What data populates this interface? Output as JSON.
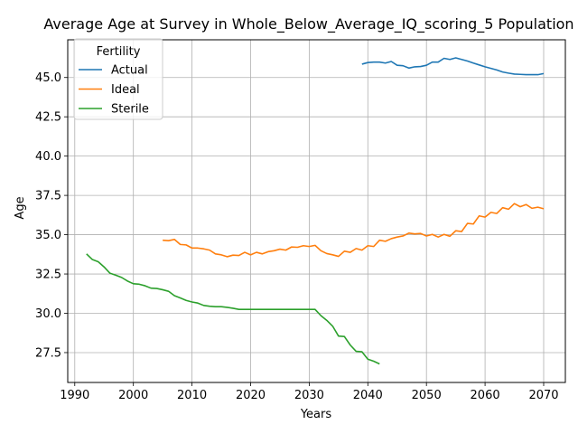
{
  "chart_data": {
    "type": "line",
    "title": "Average Age at Survey in Whole_Below_Average_IQ_scoring_5 Population",
    "xlabel": "Years",
    "ylabel": "Age",
    "xlim": [
      1988.8,
      2073.7
    ],
    "ylim": [
      25.6,
      47.4
    ],
    "xticks": [
      1990,
      2000,
      2010,
      2020,
      2030,
      2040,
      2050,
      2060,
      2070
    ],
    "xtick_labels": [
      "1990",
      "2000",
      "2010",
      "2020",
      "2030",
      "2040",
      "2050",
      "2060",
      "2070"
    ],
    "yticks": [
      27.5,
      30.0,
      32.5,
      35.0,
      37.5,
      40.0,
      42.5,
      45.0
    ],
    "ytick_labels": [
      "27.5",
      "30.0",
      "32.5",
      "35.0",
      "37.5",
      "40.0",
      "42.5",
      "45.0"
    ],
    "grid": true,
    "legend": {
      "title": "Fertility",
      "position": "upper left"
    },
    "series": [
      {
        "name": "Actual",
        "color": "#1f77b4",
        "x": [
          2039,
          2040,
          2041,
          2042,
          2043,
          2044,
          2045,
          2046,
          2047,
          2048,
          2049,
          2050,
          2051,
          2052,
          2053,
          2054,
          2055,
          2056,
          2057,
          2058,
          2059,
          2060,
          2061,
          2062,
          2063,
          2064,
          2065,
          2066,
          2067,
          2068,
          2069,
          2070
        ],
        "y": [
          45.85,
          45.95,
          45.98,
          45.98,
          45.92,
          46.02,
          45.78,
          45.75,
          45.6,
          45.68,
          45.7,
          45.78,
          45.98,
          45.98,
          46.22,
          46.15,
          46.25,
          46.15,
          46.05,
          45.92,
          45.8,
          45.68,
          45.58,
          45.48,
          45.35,
          45.28,
          45.22,
          45.2,
          45.18,
          45.18,
          45.18,
          45.25
        ]
      },
      {
        "name": "Ideal",
        "color": "#ff7f0e",
        "x": [
          2005,
          2006,
          2007,
          2008,
          2009,
          2010,
          2011,
          2012,
          2013,
          2014,
          2015,
          2016,
          2017,
          2018,
          2019,
          2020,
          2021,
          2022,
          2023,
          2024,
          2025,
          2026,
          2027,
          2028,
          2029,
          2030,
          2031,
          2032,
          2033,
          2034,
          2035,
          2036,
          2037,
          2038,
          2039,
          2040,
          2041,
          2042,
          2043,
          2044,
          2045,
          2046,
          2047,
          2048,
          2049,
          2050,
          2051,
          2052,
          2053,
          2054,
          2055,
          2056,
          2057,
          2058,
          2059,
          2060,
          2061,
          2062,
          2063,
          2064,
          2065,
          2066,
          2067,
          2068,
          2069,
          2070
        ],
        "y": [
          34.65,
          34.62,
          34.7,
          34.38,
          34.35,
          34.15,
          34.15,
          34.1,
          34.02,
          33.78,
          33.72,
          33.6,
          33.7,
          33.68,
          33.88,
          33.72,
          33.88,
          33.78,
          33.92,
          33.98,
          34.08,
          34.02,
          34.22,
          34.2,
          34.3,
          34.25,
          34.32,
          33.98,
          33.8,
          33.72,
          33.62,
          33.95,
          33.88,
          34.12,
          34.02,
          34.3,
          34.25,
          34.65,
          34.58,
          34.75,
          34.85,
          34.92,
          35.1,
          35.05,
          35.08,
          34.92,
          35.02,
          34.85,
          35.02,
          34.9,
          35.25,
          35.2,
          35.72,
          35.68,
          36.2,
          36.12,
          36.42,
          36.35,
          36.72,
          36.62,
          36.98,
          36.78,
          36.92,
          36.68,
          36.75,
          36.65
        ]
      },
      {
        "name": "Sterile",
        "color": "#2ca02c",
        "x": [
          1992,
          1993,
          1994,
          1995,
          1996,
          1997,
          1998,
          1999,
          2000,
          2001,
          2002,
          2003,
          2004,
          2005,
          2006,
          2007,
          2008,
          2009,
          2010,
          2011,
          2012,
          2013,
          2014,
          2015,
          2016,
          2017,
          2018,
          2019,
          2020,
          2021,
          2022,
          2023,
          2024,
          2025,
          2026,
          2027,
          2028,
          2029,
          2030,
          2031,
          2032,
          2033,
          2034,
          2035,
          2036,
          2037,
          2038,
          2039,
          2040,
          2041,
          2042
        ],
        "y": [
          33.78,
          33.42,
          33.28,
          32.95,
          32.55,
          32.42,
          32.28,
          32.05,
          31.88,
          31.85,
          31.75,
          31.6,
          31.58,
          31.5,
          31.4,
          31.12,
          30.98,
          30.82,
          30.72,
          30.65,
          30.5,
          30.45,
          30.42,
          30.42,
          30.38,
          30.32,
          30.25,
          30.25,
          30.25,
          30.25,
          30.25,
          30.25,
          30.25,
          30.25,
          30.25,
          30.25,
          30.25,
          30.25,
          30.25,
          30.25,
          29.85,
          29.55,
          29.18,
          28.55,
          28.52,
          27.98,
          27.58,
          27.55,
          27.08,
          26.95,
          26.78
        ]
      }
    ]
  }
}
